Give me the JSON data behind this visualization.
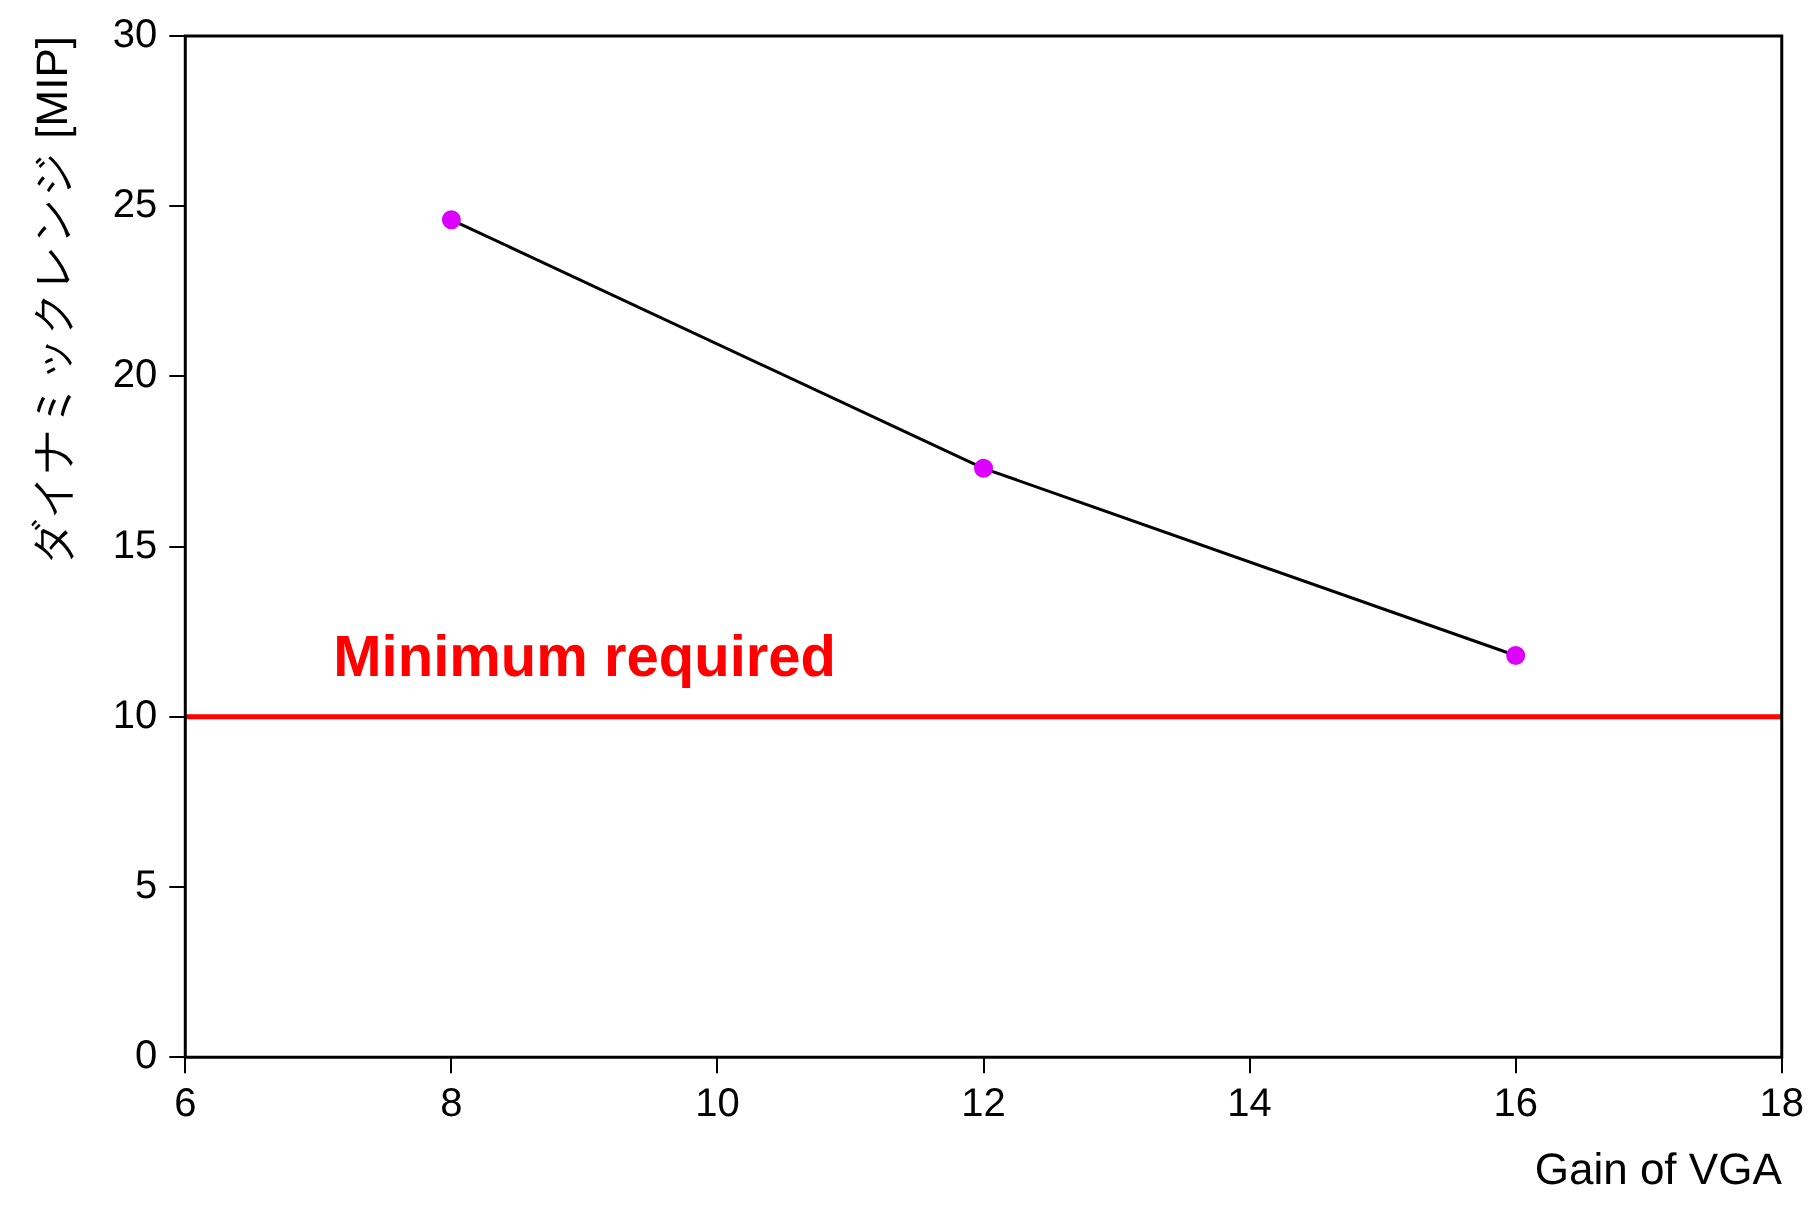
{
  "chart_data": {
    "type": "line",
    "xlabel": "Gain of VGA",
    "ylabel": "ダイナミックレンジ [MIP]",
    "x": [
      8,
      12,
      16
    ],
    "series": [
      {
        "color": "#000000",
        "colors": [
          "#dd00ff",
          "#dd00ff",
          "#dd00ff"
        ],
        "values": [
          24.6,
          17.3,
          11.8
        ]
      }
    ],
    "marker": "circle",
    "xlim": [
      6,
      18
    ],
    "xticks": [
      6,
      8,
      10,
      12,
      14,
      16,
      18
    ],
    "ylim": [
      0,
      30
    ],
    "yticks": [
      0,
      5,
      10,
      15,
      20,
      25,
      30
    ],
    "ref_lines": [
      {
        "axis": "y",
        "value": 10,
        "label": "Minimum required",
        "color": "#ff0000"
      }
    ],
    "grid": false,
    "legend": false
  }
}
